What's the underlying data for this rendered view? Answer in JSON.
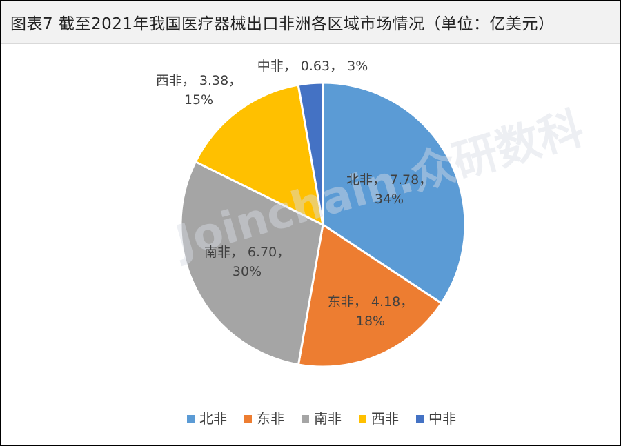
{
  "chart_data": {
    "type": "pie",
    "title": "图表7  截至2021年我国医疗器械出口非洲各区域市场情况（单位：亿美元）",
    "categories": [
      "北非",
      "东非",
      "南非",
      "西非",
      "中非"
    ],
    "values": [
      7.78,
      4.18,
      6.7,
      3.38,
      0.63
    ],
    "percent_labels": [
      "34%",
      "18%",
      "30%",
      "15%",
      "3%"
    ],
    "value_labels": [
      "7.78",
      "4.18",
      "6.70",
      "3.38",
      "0.63"
    ],
    "colors": [
      "#5b9bd5",
      "#ed7d31",
      "#a5a5a5",
      "#ffc000",
      "#4472c4"
    ],
    "legend_position": "bottom"
  },
  "watermark": {
    "text": "Joinchain.众研数科"
  }
}
